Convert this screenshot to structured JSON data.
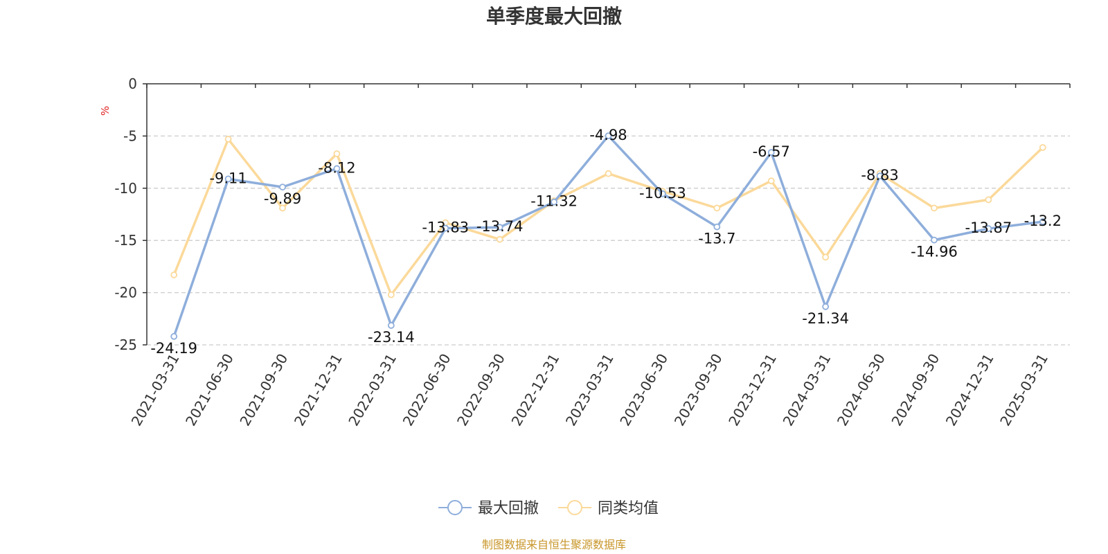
{
  "chart_data": {
    "type": "line",
    "title": "单季度最大回撤",
    "ylabel": "%",
    "xlabel": "",
    "ylim": [
      -25,
      0
    ],
    "yticks": [
      0,
      -5,
      -10,
      -15,
      -20,
      -25
    ],
    "y_tick_labels": [
      "0",
      "-5",
      "-10",
      "-15",
      "-20",
      "-25"
    ],
    "grid": true,
    "legend_position": "bottom-center",
    "categories": [
      "2021-03-31",
      "2021-06-30",
      "2021-09-30",
      "2021-12-31",
      "2022-03-31",
      "2022-06-30",
      "2022-09-30",
      "2022-12-31",
      "2023-03-31",
      "2023-06-30",
      "2023-09-30",
      "2023-12-31",
      "2024-03-31",
      "2024-06-30",
      "2024-09-30",
      "2024-12-31",
      "2025-03-31"
    ],
    "series": [
      {
        "name": "最大回撤",
        "color": "#8eaedb",
        "values": [
          -24.19,
          -9.11,
          -9.89,
          -8.12,
          -23.14,
          -13.83,
          -13.74,
          -11.32,
          -4.98,
          -10.53,
          -13.7,
          -6.57,
          -21.34,
          -8.83,
          -14.96,
          -13.87,
          -13.2
        ],
        "labels": [
          "-24.19",
          "-9.11",
          "-9.89",
          "-8.12",
          "-23.14",
          "-13.83",
          "-13.74",
          "-11.32",
          "-4.98",
          "-10.53",
          "-13.7",
          "-6.57",
          "-21.34",
          "-8.83",
          "-14.96",
          "-13.87",
          "-13.2"
        ]
      },
      {
        "name": "同类均值",
        "color": "#fbd99a",
        "values": [
          -18.3,
          -5.3,
          -11.9,
          -6.7,
          -20.2,
          -13.3,
          -14.9,
          -11.2,
          -8.6,
          -10.3,
          -11.9,
          -9.3,
          -16.6,
          -8.6,
          -11.9,
          -11.1,
          -6.1
        ]
      }
    ]
  },
  "source": "制图数据来自恒生聚源数据库"
}
